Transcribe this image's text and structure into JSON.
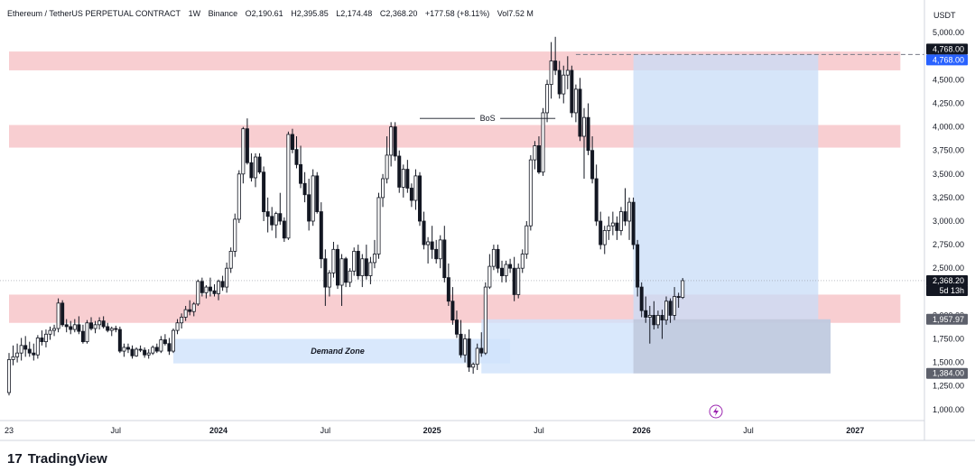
{
  "header": {
    "symbol": "Ethereum / TetherUS PERPETUAL CONTRACT",
    "interval": "1W",
    "exchange": "Binance",
    "open": "O2,190.61",
    "high": "H2,395.85",
    "low": "L2,174.48",
    "close": "C2,368.20",
    "change": "+177.58 (+8.11%)",
    "volume": "Vol7.52 M"
  },
  "currency_label": "USDT",
  "footer": {
    "brand": "TradingView",
    "logo_mark": "17"
  },
  "colors": {
    "up_candle": "#ffffff",
    "down_candle": "#131722",
    "supply_zone": "#f7c5c9",
    "demand_zone": "#cfe2fb",
    "position_zone": "#c8dcf7",
    "stop_zone": "#b9c2d6",
    "badge": "#131722",
    "badge_blue": "#2962ff"
  },
  "chart_data": {
    "type": "candlestick",
    "title": "Ethereum / TetherUS PERPETUAL CONTRACT · 1W · Binance",
    "ylim": [
      850,
      5150
    ],
    "y_ticks": [
      "5,000.00",
      "4,750.00",
      "4,500.00",
      "4,250.00",
      "4,000.00",
      "3,750.00",
      "3,500.00",
      "3,250.00",
      "3,000.00",
      "2,750.00",
      "2,500.00",
      "2,250.00",
      "2,000.00",
      "1,750.00",
      "1,500.00",
      "1,250.00",
      "1,000.00"
    ],
    "y_tick_values": [
      5000,
      4750,
      4500,
      4250,
      4000,
      3750,
      3500,
      3250,
      3000,
      2750,
      2500,
      2250,
      2000,
      1750,
      1500,
      1250,
      1000
    ],
    "x_ticks": [
      {
        "label": "23",
        "week": 0
      },
      {
        "label": "Jul",
        "week": 26
      },
      {
        "label": "2024",
        "week": 51
      },
      {
        "label": "Jul",
        "week": 77
      },
      {
        "label": "2025",
        "week": 103
      },
      {
        "label": "Jul",
        "week": 129
      },
      {
        "label": "2026",
        "week": 154
      },
      {
        "label": "Jul",
        "week": 180
      },
      {
        "label": "2027",
        "week": 206
      }
    ],
    "price_badges": [
      {
        "label": "4,768.00",
        "value": 4768,
        "style": "dark"
      },
      {
        "label": "4,768.00",
        "value": 4768,
        "style": "blue"
      },
      {
        "label": "2,368.20",
        "value": 2368.2,
        "style": "dark"
      },
      {
        "label": "5d 13h",
        "value": 2368.2,
        "style": "dark_sub"
      },
      {
        "label": "1,957.97",
        "value": 1957.97,
        "style": "gray"
      },
      {
        "label": "1,384.00",
        "value": 1384,
        "style": "gray"
      }
    ],
    "zones": [
      {
        "name": "supply-zone-top",
        "from_week": 0,
        "to_week": 217,
        "low": 4600,
        "high": 4800,
        "kind": "supply"
      },
      {
        "name": "supply-zone-mid",
        "from_week": 0,
        "to_week": 217,
        "low": 3780,
        "high": 4020,
        "kind": "supply"
      },
      {
        "name": "support-zone",
        "from_week": 0,
        "to_week": 217,
        "low": 1920,
        "high": 2220,
        "kind": "supply"
      },
      {
        "name": "demand-zone",
        "from_week": 40,
        "to_week": 122,
        "low": 1490,
        "high": 1750,
        "kind": "demand",
        "label": "Demand Zone"
      },
      {
        "name": "position-target",
        "from_week": 152,
        "to_week": 197,
        "low": 1957.97,
        "high": 4768,
        "kind": "position"
      },
      {
        "name": "position-entry-extension",
        "from_week": 115,
        "to_week": 200,
        "low": 1384,
        "high": 1957.97,
        "kind": "demand"
      },
      {
        "name": "position-stop",
        "from_week": 152,
        "to_week": 200,
        "low": 1384,
        "high": 1957.97,
        "kind": "stop"
      }
    ],
    "annotations": [
      {
        "label": "BoS",
        "from_week": 100,
        "to_week": 133,
        "value": 4090
      },
      {
        "label": "Demand Zone",
        "week": 80,
        "value": 1620
      }
    ],
    "target_line": {
      "from_week": 138,
      "to_week": 217,
      "value": 4768
    },
    "current_price_line": 2368.2,
    "candles": [
      [
        1180,
        1600,
        1150,
        1530
      ],
      [
        1530,
        1680,
        1470,
        1560
      ],
      [
        1560,
        1700,
        1500,
        1600
      ],
      [
        1600,
        1760,
        1520,
        1680
      ],
      [
        1680,
        1780,
        1560,
        1640
      ],
      [
        1640,
        1720,
        1560,
        1600
      ],
      [
        1600,
        1700,
        1520,
        1580
      ],
      [
        1580,
        1790,
        1540,
        1760
      ],
      [
        1760,
        1840,
        1680,
        1720
      ],
      [
        1720,
        1850,
        1660,
        1800
      ],
      [
        1800,
        1880,
        1740,
        1840
      ],
      [
        1840,
        1900,
        1780,
        1860
      ],
      [
        1860,
        2180,
        1820,
        2130
      ],
      [
        2130,
        2160,
        1880,
        1900
      ],
      [
        1900,
        1960,
        1820,
        1880
      ],
      [
        1880,
        1940,
        1800,
        1850
      ],
      [
        1850,
        1960,
        1820,
        1900
      ],
      [
        1900,
        1990,
        1800,
        1830
      ],
      [
        1830,
        1900,
        1700,
        1720
      ],
      [
        1720,
        1950,
        1700,
        1920
      ],
      [
        1920,
        1980,
        1840,
        1860
      ],
      [
        1860,
        1940,
        1810,
        1900
      ],
      [
        1900,
        1980,
        1850,
        1940
      ],
      [
        1940,
        1990,
        1860,
        1880
      ],
      [
        1880,
        1920,
        1820,
        1840
      ],
      [
        1840,
        1880,
        1780,
        1860
      ],
      [
        1860,
        1890,
        1820,
        1850
      ],
      [
        1850,
        1880,
        1600,
        1620
      ],
      [
        1620,
        1700,
        1560,
        1660
      ],
      [
        1660,
        1700,
        1600,
        1640
      ],
      [
        1640,
        1680,
        1540,
        1570
      ],
      [
        1570,
        1660,
        1560,
        1640
      ],
      [
        1640,
        1680,
        1610,
        1630
      ],
      [
        1630,
        1660,
        1550,
        1580
      ],
      [
        1580,
        1640,
        1540,
        1600
      ],
      [
        1600,
        1680,
        1580,
        1660
      ],
      [
        1660,
        1700,
        1600,
        1620
      ],
      [
        1620,
        1780,
        1600,
        1740
      ],
      [
        1740,
        1800,
        1680,
        1700
      ],
      [
        1700,
        1760,
        1580,
        1620
      ],
      [
        1620,
        1860,
        1600,
        1840
      ],
      [
        1840,
        1960,
        1800,
        1920
      ],
      [
        1920,
        2020,
        1860,
        1980
      ],
      [
        1980,
        2100,
        1940,
        2060
      ],
      [
        2060,
        2160,
        2000,
        2040
      ],
      [
        2040,
        2140,
        1990,
        2120
      ],
      [
        2120,
        2380,
        2100,
        2360
      ],
      [
        2360,
        2400,
        2200,
        2240
      ],
      [
        2240,
        2320,
        2180,
        2300
      ],
      [
        2300,
        2400,
        2200,
        2260
      ],
      [
        2260,
        2330,
        2200,
        2230
      ],
      [
        2230,
        2380,
        2160,
        2360
      ],
      [
        2360,
        2420,
        2260,
        2300
      ],
      [
        2300,
        2560,
        2240,
        2500
      ],
      [
        2500,
        2720,
        2450,
        2680
      ],
      [
        2680,
        3080,
        2620,
        3020
      ],
      [
        3020,
        3540,
        2980,
        3500
      ],
      [
        3500,
        4000,
        3400,
        3980
      ],
      [
        3980,
        4090,
        3600,
        3620
      ],
      [
        3620,
        3720,
        3420,
        3460
      ],
      [
        3460,
        3720,
        3360,
        3680
      ],
      [
        3680,
        3720,
        3500,
        3520
      ],
      [
        3520,
        3580,
        3000,
        3100
      ],
      [
        3100,
        3250,
        2880,
        3050
      ],
      [
        3050,
        3150,
        2900,
        2960
      ],
      [
        2960,
        3100,
        2820,
        3080
      ],
      [
        3080,
        3300,
        2960,
        3000
      ],
      [
        3000,
        3040,
        2780,
        2820
      ],
      [
        2820,
        3950,
        2800,
        3920
      ],
      [
        3920,
        3980,
        3720,
        3760
      ],
      [
        3760,
        3900,
        3560,
        3600
      ],
      [
        3600,
        3800,
        3350,
        3400
      ],
      [
        3400,
        3520,
        3200,
        3280
      ],
      [
        3280,
        3450,
        2900,
        3000
      ],
      [
        3000,
        3550,
        2950,
        3480
      ],
      [
        3480,
        3520,
        3080,
        3100
      ],
      [
        3100,
        3200,
        2500,
        2600
      ],
      [
        2600,
        2700,
        2100,
        2300
      ],
      [
        2300,
        2480,
        2200,
        2450
      ],
      [
        2450,
        2780,
        2400,
        2700
      ],
      [
        2700,
        2750,
        2280,
        2320
      ],
      [
        2320,
        2650,
        2100,
        2600
      ],
      [
        2600,
        2620,
        2300,
        2350
      ],
      [
        2350,
        2500,
        2300,
        2470
      ],
      [
        2470,
        2720,
        2420,
        2680
      ],
      [
        2680,
        2750,
        2380,
        2420
      ],
      [
        2420,
        2650,
        2300,
        2600
      ],
      [
        2600,
        2750,
        2380,
        2420
      ],
      [
        2420,
        2620,
        2330,
        2560
      ],
      [
        2560,
        2800,
        2500,
        2650
      ],
      [
        2650,
        3300,
        2600,
        3250
      ],
      [
        3250,
        3500,
        3150,
        3450
      ],
      [
        3450,
        3900,
        3400,
        3700
      ],
      [
        3700,
        4050,
        3580,
        4000
      ],
      [
        4000,
        4050,
        3640,
        3690
      ],
      [
        3690,
        3750,
        3300,
        3360
      ],
      [
        3360,
        3600,
        3250,
        3550
      ],
      [
        3550,
        3650,
        3300,
        3350
      ],
      [
        3350,
        3400,
        3150,
        3220
      ],
      [
        3220,
        3550,
        3120,
        3480
      ],
      [
        3480,
        3520,
        2950,
        3000
      ],
      [
        3000,
        3100,
        2700,
        2750
      ],
      [
        2750,
        2830,
        2550,
        2780
      ],
      [
        2780,
        2950,
        2600,
        2700
      ],
      [
        2700,
        2800,
        2550,
        2600
      ],
      [
        2600,
        2850,
        2500,
        2800
      ],
      [
        2800,
        2950,
        2350,
        2400
      ],
      [
        2400,
        2550,
        2100,
        2150
      ],
      [
        2150,
        2300,
        1900,
        1950
      ],
      [
        1950,
        2050,
        1760,
        1800
      ],
      [
        1800,
        1950,
        1550,
        1580
      ],
      [
        1580,
        1800,
        1500,
        1750
      ],
      [
        1750,
        1850,
        1400,
        1450
      ],
      [
        1450,
        1500,
        1380,
        1480
      ],
      [
        1480,
        1700,
        1420,
        1650
      ],
      [
        1650,
        1820,
        1560,
        1600
      ],
      [
        1600,
        2350,
        1580,
        2300
      ],
      [
        2300,
        2650,
        2280,
        2520
      ],
      [
        2520,
        2750,
        2480,
        2700
      ],
      [
        2700,
        2750,
        2450,
        2500
      ],
      [
        2500,
        2580,
        2350,
        2420
      ],
      [
        2420,
        2580,
        2350,
        2540
      ],
      [
        2540,
        2600,
        2450,
        2500
      ],
      [
        2500,
        2620,
        2150,
        2220
      ],
      [
        2220,
        2550,
        2180,
        2500
      ],
      [
        2500,
        2700,
        2450,
        2650
      ],
      [
        2650,
        3000,
        2600,
        2950
      ],
      [
        2950,
        3700,
        2900,
        3650
      ],
      [
        3650,
        3850,
        3550,
        3800
      ],
      [
        3800,
        3900,
        3500,
        3520
      ],
      [
        3520,
        4200,
        3480,
        4150
      ],
      [
        4150,
        4500,
        4050,
        4450
      ],
      [
        4450,
        4900,
        4300,
        4700
      ],
      [
        4700,
        4956,
        4550,
        4600
      ],
      [
        4600,
        4700,
        4300,
        4350
      ],
      [
        4350,
        4650,
        4250,
        4550
      ],
      [
        4550,
        4750,
        4400,
        4600
      ],
      [
        4600,
        4650,
        4100,
        4150
      ],
      [
        4150,
        4450,
        4050,
        4400
      ],
      [
        4400,
        4520,
        3850,
        3900
      ],
      [
        3900,
        4200,
        3450,
        4100
      ],
      [
        4100,
        4250,
        3700,
        3750
      ],
      [
        3750,
        3900,
        3400,
        3450
      ],
      [
        3450,
        3600,
        2950,
        3000
      ],
      [
        3000,
        3100,
        2700,
        2750
      ],
      [
        2750,
        2950,
        2650,
        2900
      ],
      [
        2900,
        3050,
        2800,
        2950
      ],
      [
        2950,
        3100,
        2850,
        2980
      ],
      [
        2980,
        3050,
        2800,
        2900
      ],
      [
        2900,
        3150,
        2850,
        3100
      ],
      [
        3100,
        3350,
        2950,
        3000
      ],
      [
        3000,
        3250,
        2800,
        3200
      ],
      [
        3200,
        3250,
        2700,
        2750
      ],
      [
        2750,
        2800,
        2200,
        2300
      ],
      [
        2300,
        2350,
        1980,
        2050
      ],
      [
        2050,
        2200,
        1920,
        1980
      ],
      [
        1980,
        2100,
        1700,
        2000
      ],
      [
        2000,
        2150,
        1850,
        1900
      ],
      [
        1900,
        2050,
        1860,
        2000
      ],
      [
        2000,
        2060,
        1750,
        1950
      ],
      [
        1950,
        2200,
        1900,
        2150
      ],
      [
        2150,
        2180,
        1920,
        2000
      ],
      [
        2000,
        2300,
        1950,
        2200
      ],
      [
        2200,
        2240,
        2080,
        2190
      ],
      [
        2190,
        2396,
        2174,
        2368
      ]
    ]
  }
}
